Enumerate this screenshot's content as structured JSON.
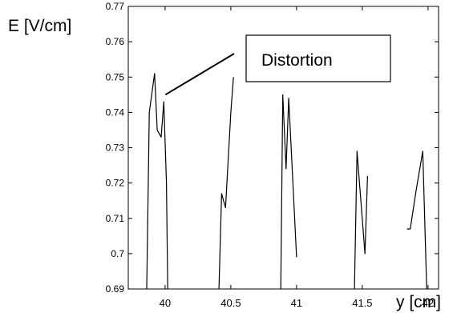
{
  "chart_data": {
    "type": "line",
    "title": "",
    "xlabel": "y [cm]",
    "ylabel": "E [V/cm]",
    "xlim": [
      39.72,
      42.08
    ],
    "ylim": [
      0.69,
      0.77
    ],
    "grid": false,
    "xticks": [
      "40",
      "40.5",
      "41",
      "41.5",
      "42"
    ],
    "yticks": [
      "0.69",
      "0.7",
      "0.71",
      "0.72",
      "0.73",
      "0.74",
      "0.75",
      "0.76",
      "0.77"
    ],
    "annotation": {
      "text": "Distortion",
      "target": [
        39.99,
        0.745
      ]
    },
    "segments": [
      {
        "x": [
          39.86,
          39.88,
          39.92,
          39.94,
          39.97,
          39.99,
          40.01,
          40.02
        ],
        "y": [
          0.69,
          0.74,
          0.751,
          0.735,
          0.733,
          0.743,
          0.72,
          0.69
        ]
      },
      {
        "x": [
          40.41,
          40.43,
          40.46,
          40.5,
          40.52
        ],
        "y": [
          0.69,
          0.717,
          0.713,
          0.74,
          0.75
        ]
      },
      {
        "x": [
          40.53,
          40.535
        ],
        "y": [
          0.69,
          0.69
        ]
      },
      {
        "x": [
          40.88,
          40.895,
          40.92,
          40.94,
          41.0
        ],
        "y": [
          0.69,
          0.745,
          0.724,
          0.744,
          0.699
        ]
      },
      {
        "x": [
          41.44,
          41.46,
          41.52,
          41.54
        ],
        "y": [
          0.69,
          0.729,
          0.7,
          0.722
        ]
      },
      {
        "x": [
          41.84,
          41.865,
          41.91,
          41.96,
          41.99
        ],
        "y": [
          0.707,
          0.707,
          0.718,
          0.729,
          0.69
        ]
      }
    ]
  }
}
